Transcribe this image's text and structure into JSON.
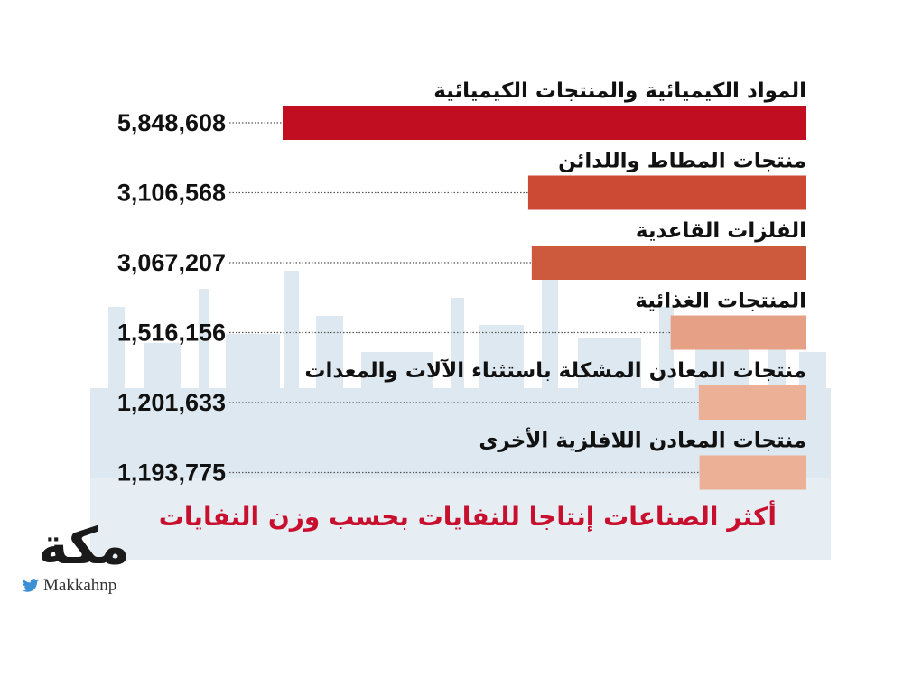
{
  "chart_data": {
    "type": "bar",
    "orientation": "horizontal",
    "title": "أكثر الصناعات إنتاجا للنفايات بحسب وزن النفايات",
    "categories": [
      "المواد الكيميائية والمنتجات الكيميائية",
      "منتجات المطاط واللدائن",
      "الفلزات القاعدية",
      "المنتجات الغذائية",
      "منتجات المعادن المشكلة باستثناء الآلات والمعدات",
      "منتجات المعادن اللافلزية الأخرى"
    ],
    "values": [
      5848608,
      3106568,
      3067207,
      1516156,
      1201633,
      1193775
    ],
    "value_labels": [
      "5,848,608",
      "3,106,568",
      "3,067,207",
      "1,516,156",
      "1,201,633",
      "1,193,775"
    ],
    "bar_colors": [
      "#c10f21",
      "#cc4a34",
      "#cd5a3c",
      "#e6a085",
      "#ebb096",
      "#ebb096"
    ],
    "xlim": [
      0,
      5848608
    ],
    "grid": false,
    "legend": "none"
  },
  "branding": {
    "logo_text": "مكة",
    "handle": "Makkahnp",
    "icon": "twitter-icon"
  }
}
